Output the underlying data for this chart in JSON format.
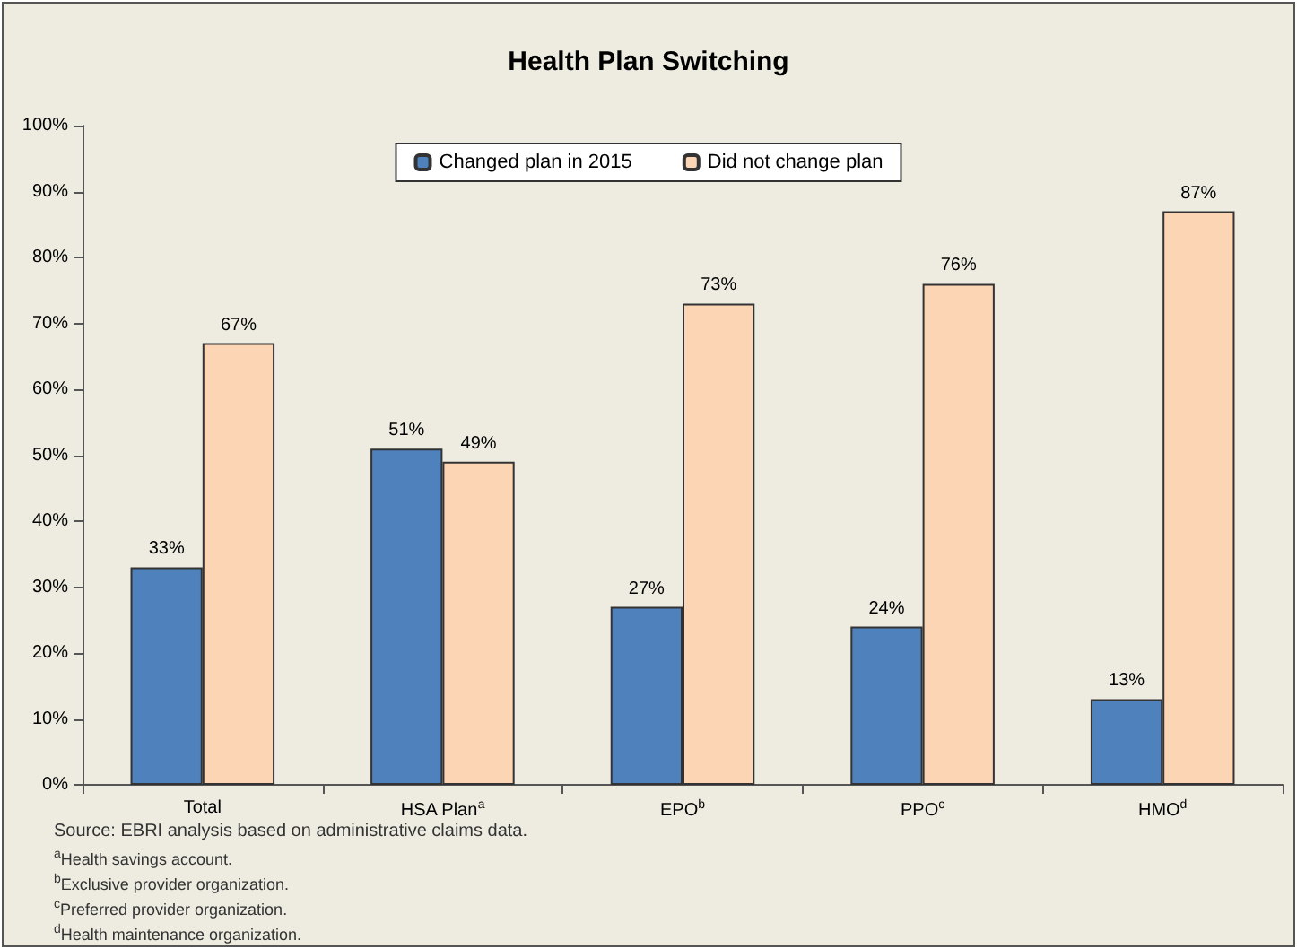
{
  "chart_data": {
    "type": "bar",
    "title": "Health Plan Switching",
    "categories": [
      "Total",
      "HSA Plan$^{a}$",
      "EPO$^{b}$",
      "PPO$^{c}$",
      "HMO$^{d}$"
    ],
    "series": [
      {
        "name": "Changed plan in 2015",
        "color": "#4f81bd",
        "values": [
          33,
          51,
          27,
          24,
          13
        ],
        "value_labels": [
          "33%",
          "51%",
          "27%",
          "24%",
          "13%"
        ]
      },
      {
        "name": "Did not change plan",
        "color": "#fcd5b5",
        "values": [
          67,
          49,
          73,
          76,
          87
        ],
        "value_labels": [
          "67%",
          "49%",
          "73%",
          "76%",
          "87%"
        ]
      }
    ],
    "ylim": [
      0,
      100
    ],
    "yticks": [
      {
        "value": 0,
        "label": "0%"
      },
      {
        "value": 10,
        "label": "10%"
      },
      {
        "value": 20,
        "label": "20%"
      },
      {
        "value": 30,
        "label": "30%"
      },
      {
        "value": 40,
        "label": "40%"
      },
      {
        "value": 50,
        "label": "50%"
      },
      {
        "value": 60,
        "label": "60%"
      },
      {
        "value": 70,
        "label": "70%"
      },
      {
        "value": 80,
        "label": "80%"
      },
      {
        "value": 90,
        "label": "90%"
      },
      {
        "value": 100,
        "label": "100%"
      }
    ],
    "legend": "top",
    "annotations": [
      "Source: EBRI analysis based on administrative claims data.",
      "$^{a}$Health savings account.",
      "$^{b}$Exclusive provider organization.",
      "$^{c}$Preferred provider organization.",
      "$^{d}$Health maintenance organization."
    ]
  }
}
